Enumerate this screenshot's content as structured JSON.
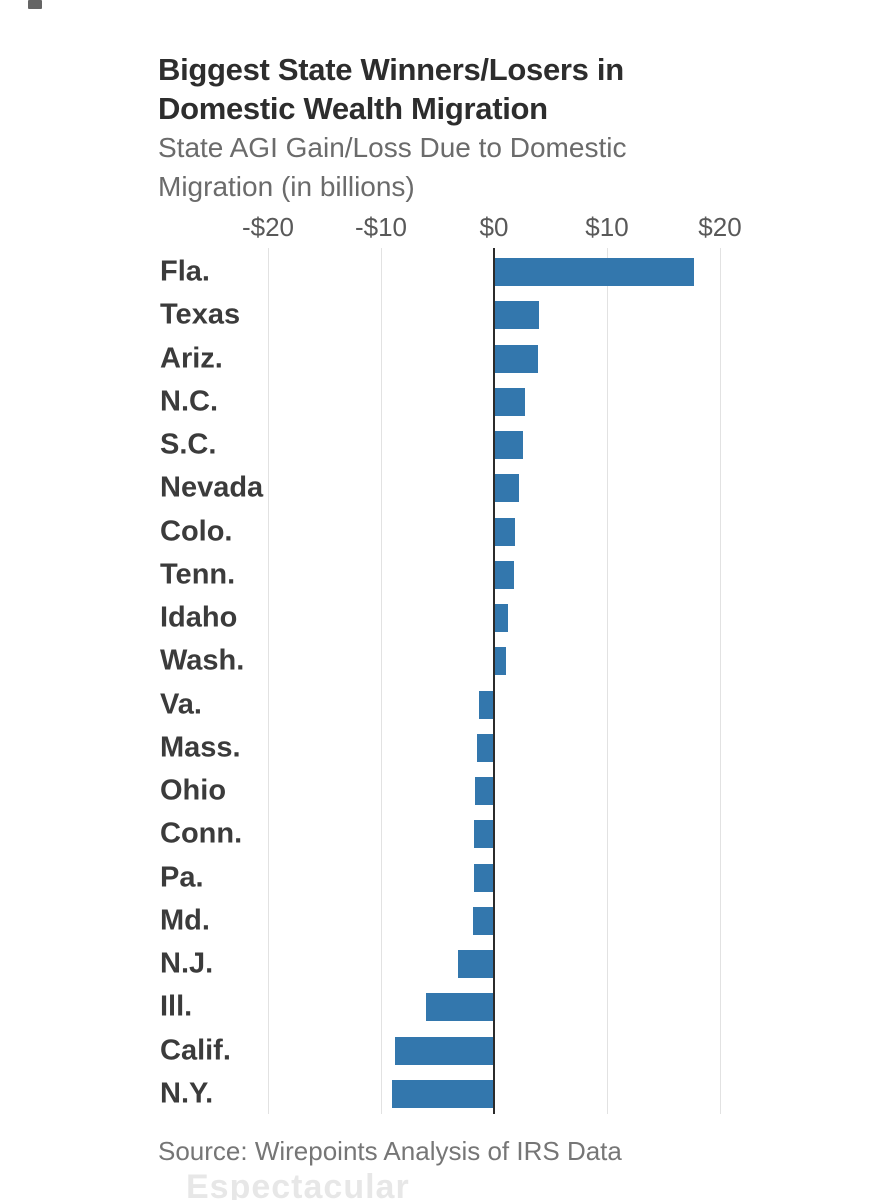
{
  "header": {
    "title_line1": "Biggest State Winners/Losers in",
    "title_line2": "Domestic Wealth Migration",
    "subtitle_line1": "State AGI Gain/Loss Due to Domestic",
    "subtitle_line2": "Migration (in billions)"
  },
  "chart_data": {
    "type": "bar",
    "orientation": "horizontal",
    "title": "Biggest State Winners/Losers in Domestic Wealth Migration",
    "subtitle": "State AGI Gain/Loss Due to Domestic Migration (in billions)",
    "xlabel": "",
    "ylabel": "",
    "unit": "$ billions",
    "categories": [
      "Fla.",
      "Texas",
      "Ariz.",
      "N.C.",
      "S.C.",
      "Nevada",
      "Colo.",
      "Tenn.",
      "Idaho",
      "Wash.",
      "Va.",
      "Mass.",
      "Ohio",
      "Conn.",
      "Pa.",
      "Md.",
      "N.J.",
      "Ill.",
      "Calif.",
      "N.Y."
    ],
    "values": [
      17.7,
      4.0,
      3.9,
      2.7,
      2.6,
      2.2,
      1.9,
      1.8,
      1.2,
      1.1,
      -1.3,
      -1.5,
      -1.7,
      -1.8,
      -1.8,
      -1.9,
      -3.2,
      -6.0,
      -8.8,
      -9.0
    ],
    "x_axis": {
      "tick_values": [
        -20,
        -10,
        0,
        10,
        20
      ],
      "tick_labels": [
        "-$20",
        "-$10",
        "$0",
        "$10",
        "$20"
      ],
      "xlim": [
        -20,
        20
      ],
      "grid": true
    },
    "colors": {
      "bar": "#3377ad",
      "axis_line": "#2b2b2b",
      "gridline": "#e2e2e2",
      "tick_label": "#595959",
      "category_label": "#3b3b3b",
      "title": "#2d2d2d",
      "subtitle": "#6b6b6b"
    }
  },
  "footer": {
    "source": "Source: Wirepoints Analysis of IRS Data",
    "ghost_text": "Espectacular"
  }
}
